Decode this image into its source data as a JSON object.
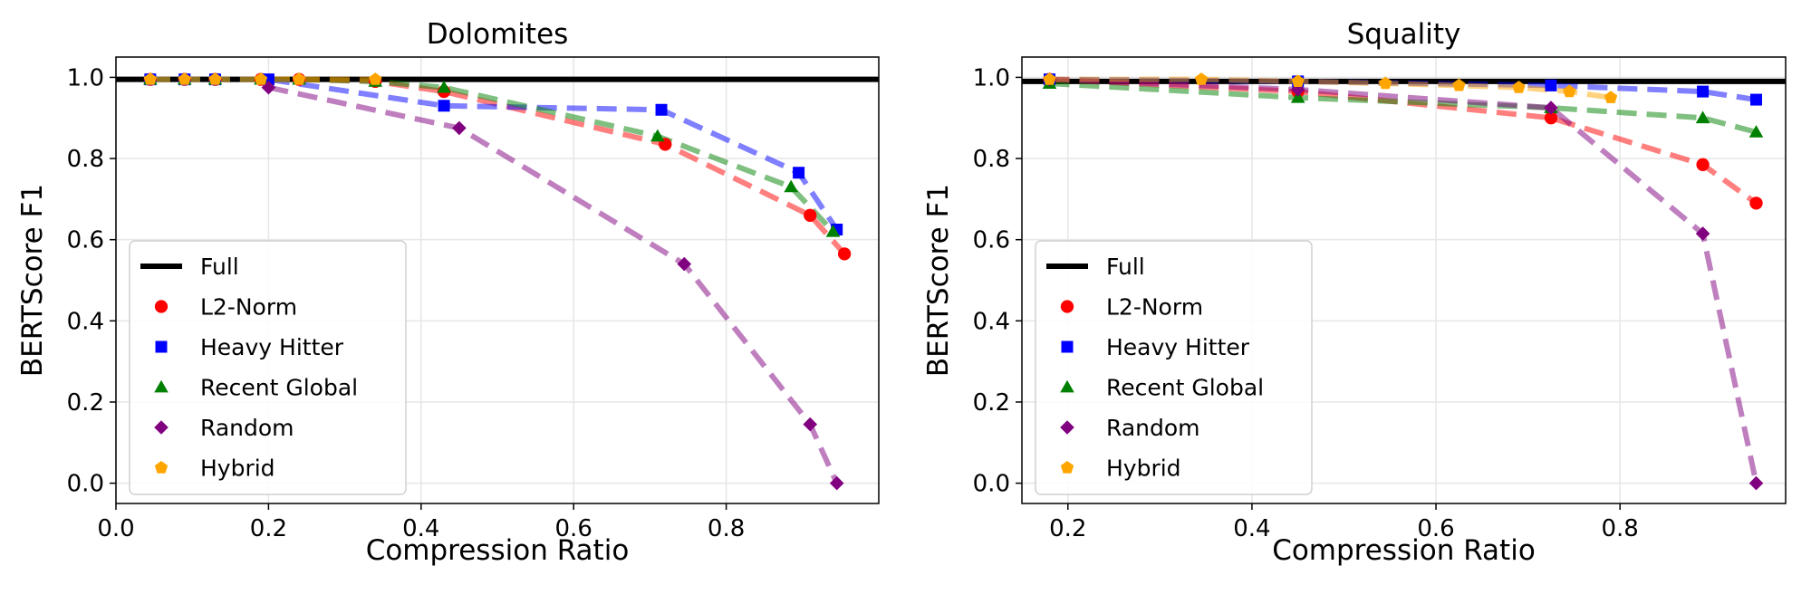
{
  "chart_data": [
    {
      "type": "line",
      "title": "Dolomites",
      "xlabel": "Compression Ratio",
      "ylabel": "BERTScore F1",
      "xlim": [
        0.0,
        1.0
      ],
      "ylim": [
        -0.05,
        1.05
      ],
      "xticks": [
        "0.0",
        "0.2",
        "0.4",
        "0.6",
        "0.8"
      ],
      "xtick_values": [
        0.0,
        0.2,
        0.4,
        0.6,
        0.8
      ],
      "yticks": [
        "0.0",
        "0.2",
        "0.4",
        "0.6",
        "0.8",
        "1.0"
      ],
      "ytick_values": [
        0.0,
        0.2,
        0.4,
        0.6,
        0.8,
        1.0
      ],
      "grid": true,
      "legend": "lower-left",
      "reference": {
        "name": "Full",
        "y": 0.995,
        "color": "#000000"
      },
      "series": [
        {
          "name": "L2-Norm",
          "color": "#ff0000",
          "marker": "circle",
          "x": [
            0.045,
            0.09,
            0.13,
            0.19,
            0.24,
            0.34,
            0.43,
            0.72,
            0.91,
            0.955
          ],
          "y": [
            0.995,
            0.995,
            0.995,
            0.995,
            0.995,
            0.99,
            0.965,
            0.835,
            0.66,
            0.565
          ]
        },
        {
          "name": "Heavy Hitter",
          "color": "#0000ff",
          "marker": "square",
          "x": [
            0.045,
            0.09,
            0.13,
            0.2,
            0.43,
            0.715,
            0.895,
            0.945
          ],
          "y": [
            0.995,
            0.995,
            0.995,
            0.995,
            0.93,
            0.92,
            0.765,
            0.625
          ]
        },
        {
          "name": "Recent Global",
          "color": "#008000",
          "marker": "triangle",
          "x": [
            0.045,
            0.09,
            0.13,
            0.19,
            0.24,
            0.34,
            0.43,
            0.71,
            0.885,
            0.94
          ],
          "y": [
            0.995,
            0.995,
            0.995,
            0.995,
            0.995,
            0.99,
            0.975,
            0.855,
            0.73,
            0.62
          ]
        },
        {
          "name": "Random",
          "color": "#800080",
          "marker": "diamond",
          "x": [
            0.2,
            0.45,
            0.745,
            0.91,
            0.945
          ],
          "y": [
            0.975,
            0.875,
            0.54,
            0.145,
            0.0
          ]
        },
        {
          "name": "Hybrid",
          "color": "#ffa500",
          "marker": "pentagon",
          "x": [
            0.045,
            0.09,
            0.13,
            0.19,
            0.24,
            0.34
          ],
          "y": [
            0.995,
            0.995,
            0.995,
            0.995,
            0.995,
            0.995
          ]
        }
      ]
    },
    {
      "type": "line",
      "title": "Squality",
      "xlabel": "Compression Ratio",
      "ylabel": "BERTScore F1",
      "xlim": [
        0.15,
        0.98
      ],
      "ylim": [
        -0.05,
        1.05
      ],
      "xticks": [
        "0.2",
        "0.4",
        "0.6",
        "0.8"
      ],
      "xtick_values": [
        0.2,
        0.4,
        0.6,
        0.8
      ],
      "yticks": [
        "0.0",
        "0.2",
        "0.4",
        "0.6",
        "0.8",
        "1.0"
      ],
      "ytick_values": [
        0.0,
        0.2,
        0.4,
        0.6,
        0.8,
        1.0
      ],
      "grid": true,
      "legend": "lower-left",
      "reference": {
        "name": "Full",
        "y": 0.99,
        "color": "#000000"
      },
      "series": [
        {
          "name": "L2-Norm",
          "color": "#ff0000",
          "marker": "circle",
          "x": [
            0.18,
            0.45,
            0.725,
            0.89,
            0.948
          ],
          "y": [
            0.995,
            0.965,
            0.9,
            0.785,
            0.69
          ]
        },
        {
          "name": "Heavy Hitter",
          "color": "#0000ff",
          "marker": "square",
          "x": [
            0.18,
            0.45,
            0.725,
            0.89,
            0.948
          ],
          "y": [
            0.995,
            0.99,
            0.98,
            0.965,
            0.945
          ]
        },
        {
          "name": "Recent Global",
          "color": "#008000",
          "marker": "triangle",
          "x": [
            0.18,
            0.45,
            0.725,
            0.89,
            0.948
          ],
          "y": [
            0.985,
            0.95,
            0.925,
            0.9,
            0.865
          ]
        },
        {
          "name": "Random",
          "color": "#800080",
          "marker": "diamond",
          "x": [
            0.18,
            0.45,
            0.725,
            0.89,
            0.948
          ],
          "y": [
            0.995,
            0.97,
            0.925,
            0.615,
            0.0
          ]
        },
        {
          "name": "Hybrid",
          "color": "#ffa500",
          "marker": "pentagon",
          "x": [
            0.18,
            0.345,
            0.45,
            0.545,
            0.625,
            0.69,
            0.745,
            0.79
          ],
          "y": [
            0.995,
            0.995,
            0.99,
            0.985,
            0.98,
            0.975,
            0.965,
            0.95
          ]
        }
      ]
    }
  ]
}
